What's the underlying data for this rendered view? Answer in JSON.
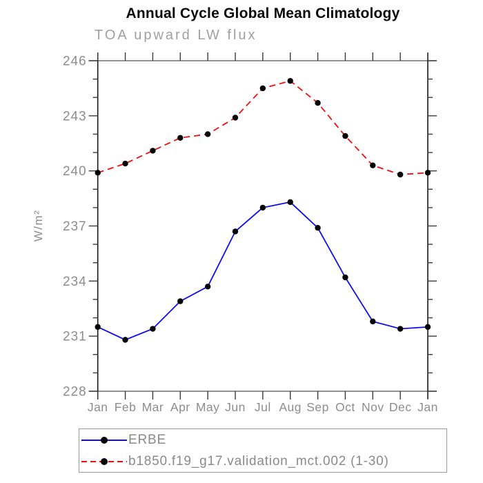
{
  "header": {
    "title": "Annual Cycle Global Mean Climatology",
    "subtitle": "TOA upward LW flux"
  },
  "chart_data": {
    "type": "line",
    "title": "Annual Cycle Global Mean Climatology",
    "subtitle": "TOA upward LW flux",
    "ylabel": "W/m²",
    "xlabel": "",
    "categories": [
      "Jan",
      "Feb",
      "Mar",
      "Apr",
      "May",
      "Jun",
      "Jul",
      "Aug",
      "Sep",
      "Oct",
      "Nov",
      "Dec",
      "Jan"
    ],
    "ylim": [
      228,
      246
    ],
    "yticks": [
      228,
      231,
      234,
      237,
      240,
      243,
      246
    ],
    "yminor_step": 1,
    "grid": false,
    "legend_position": "bottom",
    "series": [
      {
        "name": "ERBE",
        "color": "#0d0df0",
        "style": "solid",
        "marker": "circle",
        "marker_color": "#000000",
        "values": [
          231.5,
          230.8,
          231.4,
          232.9,
          233.7,
          236.7,
          238.0,
          238.3,
          236.9,
          234.2,
          231.8,
          231.4,
          231.5
        ]
      },
      {
        "name": "b1850.f19_g17.validation_mct.002 (1-30)",
        "color": "#f20d0d",
        "style": "dashed",
        "marker": "circle",
        "marker_color": "#000000",
        "values": [
          239.9,
          240.4,
          241.1,
          241.8,
          242.0,
          242.9,
          244.5,
          244.9,
          243.7,
          241.9,
          240.3,
          239.8,
          239.9
        ]
      }
    ]
  }
}
